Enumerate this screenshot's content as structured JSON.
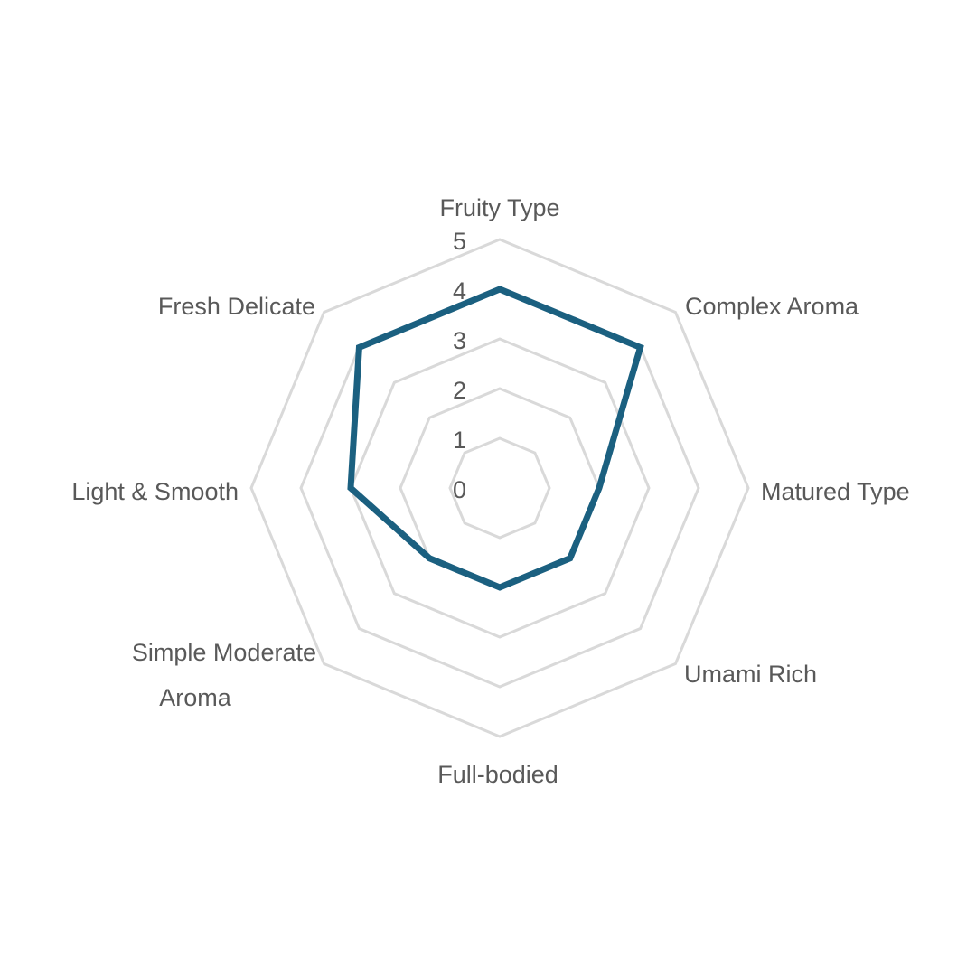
{
  "chart_data": {
    "type": "radar",
    "categories": [
      "Fruity Type",
      "Complex Aroma",
      "Matured Type",
      "Umami Rich",
      "Full-bodied",
      "Simple Moderate Aroma",
      "Light & Smooth",
      "Fresh Delicate"
    ],
    "series": [
      {
        "values": [
          4,
          4,
          2,
          2,
          2,
          2,
          3,
          4
        ],
        "color": "#1b6080"
      }
    ],
    "rlim": [
      0,
      5
    ],
    "ticks": [
      "0",
      "1",
      "2",
      "3",
      "4",
      "5"
    ],
    "grid": true,
    "grid_color": "#d9d9d9",
    "legend": "none",
    "title": ""
  }
}
